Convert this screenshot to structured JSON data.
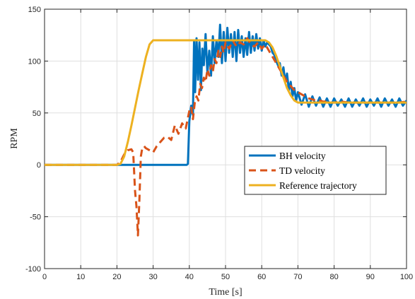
{
  "chart_data": {
    "type": "line",
    "xlabel": "Time [s]",
    "ylabel": "RPM",
    "xlim": [
      0,
      100
    ],
    "ylim": [
      -100,
      150
    ],
    "xticks": [
      0,
      10,
      20,
      30,
      40,
      50,
      60,
      70,
      80,
      90,
      100
    ],
    "yticks": [
      -100,
      -50,
      0,
      50,
      100,
      150
    ],
    "xtick_labels": [
      "0",
      "10",
      "20",
      "30",
      "40",
      "50",
      "60",
      "70",
      "80",
      "90",
      "100"
    ],
    "ytick_labels": [
      "-100",
      "-50",
      "0",
      "50",
      "100",
      "150"
    ],
    "grid": true,
    "legend_position": "center-right",
    "series": [
      {
        "name": "BH velocity",
        "color": "#0072BD",
        "style": "solid",
        "x": [
          0,
          38,
          39.3,
          39.6,
          40,
          40.5,
          41,
          41.3,
          41.6,
          42,
          42.4,
          42.8,
          43.2,
          43.6,
          44,
          44.5,
          45,
          45.5,
          46,
          46.5,
          47,
          47.5,
          48,
          48.5,
          49,
          49.5,
          50,
          50.5,
          51,
          51.5,
          52,
          52.5,
          53,
          53.5,
          54,
          54.5,
          55,
          55.5,
          56,
          56.5,
          57,
          57.5,
          58,
          58.5,
          59,
          59.5,
          60,
          60.5,
          61,
          61.5,
          62,
          62.5,
          63,
          63.5,
          64,
          64.5,
          65,
          65.5,
          66,
          66.5,
          67,
          67.5,
          68,
          68.5,
          69,
          69.5,
          70,
          71,
          72,
          73,
          74,
          75,
          76,
          77,
          78,
          79,
          80,
          81,
          82,
          83,
          84,
          85,
          86,
          87,
          88,
          89,
          90,
          91,
          92,
          93,
          94,
          95,
          96,
          97,
          98,
          99,
          100
        ],
        "y": [
          0,
          0,
          0,
          1,
          42,
          57,
          48,
          120,
          70,
          122,
          82,
          118,
          72,
          112,
          96,
          126,
          88,
          110,
          86,
          124,
          98,
          120,
          104,
          135,
          98,
          128,
          100,
          132,
          108,
          126,
          104,
          128,
          100,
          130,
          108,
          124,
          104,
          122,
          106,
          128,
          108,
          124,
          110,
          126,
          112,
          122,
          110,
          120,
          114,
          118,
          116,
          114,
          108,
          106,
          100,
          96,
          98,
          86,
          94,
          80,
          88,
          72,
          80,
          66,
          74,
          62,
          70,
          58,
          68,
          56,
          66,
          57,
          65,
          56,
          64,
          56,
          64,
          57,
          63,
          56,
          64,
          56,
          63,
          57,
          64,
          56,
          63,
          57,
          64,
          56,
          64,
          57,
          63,
          56,
          64,
          57,
          62
        ]
      },
      {
        "name": "TD velocity",
        "color": "#D95319",
        "style": "dashed",
        "x": [
          0,
          20,
          21,
          22,
          23,
          24,
          24.5,
          25,
          25.4,
          25.8,
          26.2,
          26.6,
          27,
          27.5,
          28,
          29,
          30,
          31,
          32,
          33,
          34,
          35,
          36,
          37,
          38,
          39,
          40,
          40.5,
          41,
          41.5,
          42,
          42.5,
          43,
          43.5,
          44,
          44.5,
          45,
          45.5,
          46,
          46.5,
          47,
          47.5,
          48,
          48.5,
          49,
          49.5,
          50,
          51,
          52,
          53,
          54,
          55,
          56,
          57,
          58,
          59,
          60,
          61,
          62,
          63,
          64,
          65,
          66,
          67,
          68,
          69,
          70,
          71,
          72,
          73,
          74,
          75,
          76,
          77,
          78,
          79,
          80,
          82,
          84,
          86,
          88,
          90,
          92,
          94,
          96,
          98,
          100
        ],
        "y": [
          0,
          0,
          3,
          10,
          14,
          15,
          12,
          -25,
          -40,
          -68,
          -35,
          8,
          16,
          18,
          16,
          14,
          12,
          18,
          22,
          26,
          27,
          24,
          38,
          30,
          40,
          35,
          52,
          56,
          44,
          60,
          66,
          62,
          78,
          74,
          84,
          80,
          92,
          86,
          96,
          90,
          102,
          98,
          110,
          104,
          114,
          108,
          118,
          112,
          120,
          114,
          118,
          116,
          122,
          116,
          114,
          118,
          112,
          116,
          110,
          104,
          98,
          92,
          86,
          80,
          76,
          72,
          70,
          68,
          66,
          64,
          63,
          62,
          62,
          61,
          61,
          60,
          60,
          61,
          60,
          60,
          60,
          60,
          60,
          60,
          60,
          60,
          61
        ]
      },
      {
        "name": "Reference trajectory",
        "color": "#EDB120",
        "style": "solid",
        "x": [
          0,
          20,
          21,
          22,
          23,
          24,
          25,
          26,
          27,
          28,
          29,
          30,
          61,
          62,
          63,
          64,
          65,
          66,
          67,
          68,
          69,
          70,
          100
        ],
        "y": [
          0,
          0,
          1,
          8,
          22,
          38,
          55,
          72,
          88,
          104,
          116,
          120,
          120,
          118,
          113,
          105,
          95,
          84,
          74,
          67,
          62,
          60,
          60
        ]
      }
    ]
  }
}
